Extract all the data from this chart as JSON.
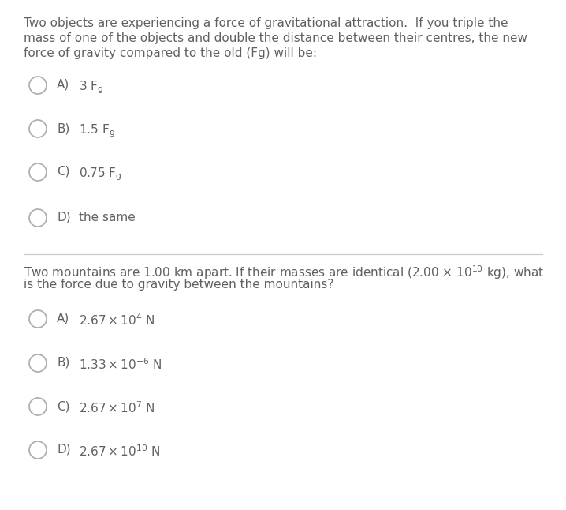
{
  "bg_color": "#ffffff",
  "text_color": "#606060",
  "circle_color": "#b0b0b0",
  "divider_color": "#cccccc",
  "font_size_q": 11.0,
  "font_size_opt": 11.0,
  "q1_line1": "Two objects are experiencing a force of gravitational attraction.  If you triple the",
  "q1_line2": "mass of one of the objects and double the distance between their centres, the new",
  "q1_line3": "force of gravity compared to the old (Fg) will be:",
  "q1_options": [
    {
      "label": "A)",
      "text": "$3\\ \\mathregular{F}_{\\mathregular{g}}$"
    },
    {
      "label": "B)",
      "text": "$1.5\\ \\mathregular{F}_{\\mathregular{g}}$"
    },
    {
      "label": "C)",
      "text": "$0.75\\ \\mathregular{F}_{\\mathregular{g}}$"
    },
    {
      "label": "D)",
      "text": "the same"
    }
  ],
  "q2_line1": "Two mountains are 1.00 km apart. If their masses are identical (2.00 × 10$^{10}$ kg), what",
  "q2_line2": "is the force due to gravity between the mountains?",
  "q2_options": [
    {
      "label": "A)",
      "text": "$2.67 \\times 10^{4}$ N"
    },
    {
      "label": "B)",
      "text": "$1.33 \\times 10^{-6}$ N"
    },
    {
      "label": "C)",
      "text": "$2.67 \\times 10^{7}$ N"
    },
    {
      "label": "D)",
      "text": "$2.67 \\times 10^{10}$ N"
    }
  ]
}
